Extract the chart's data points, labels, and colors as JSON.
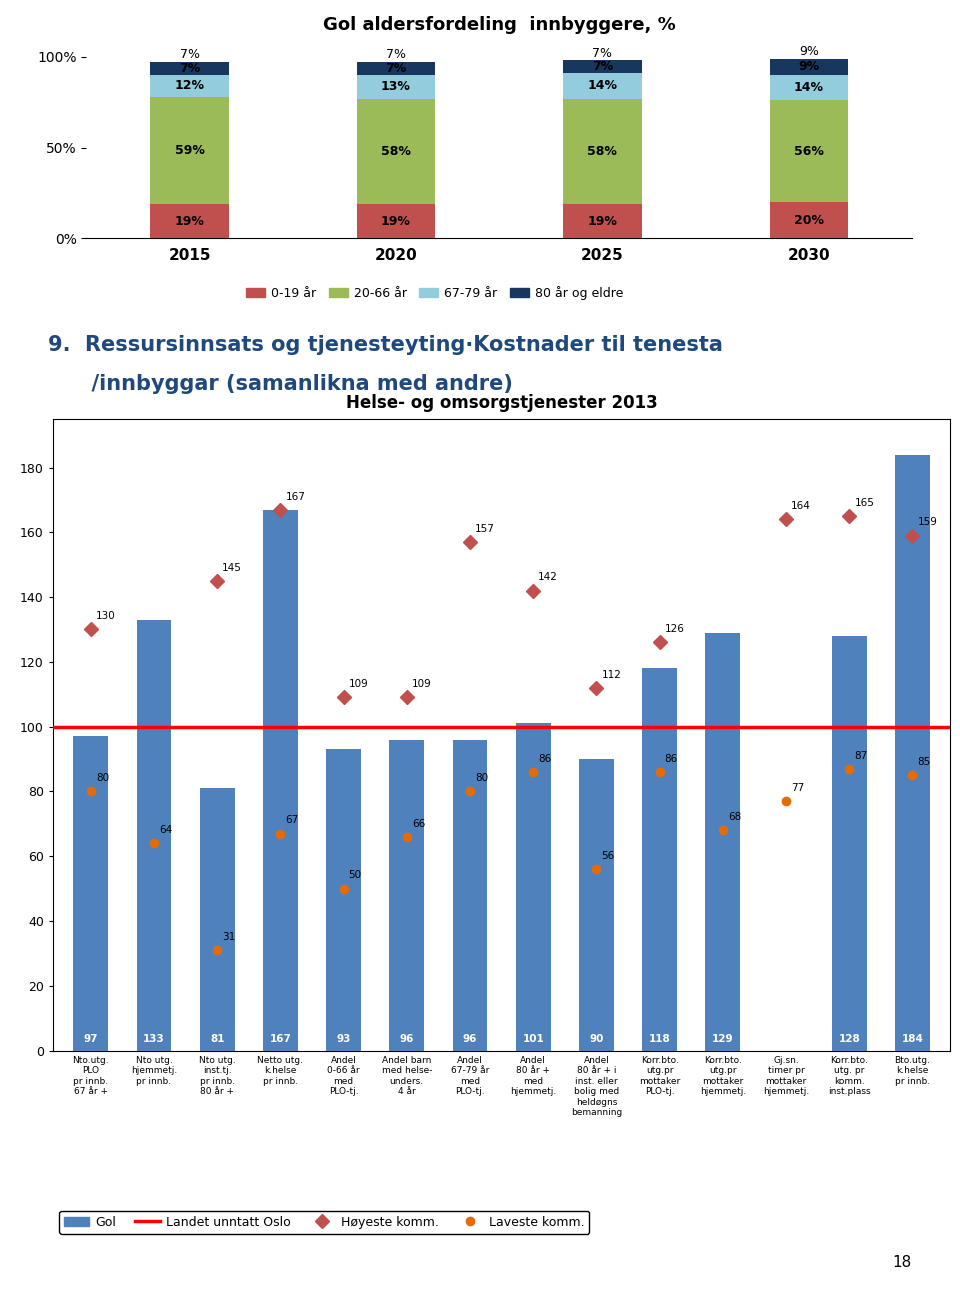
{
  "chart1": {
    "title": "Gol aldersfordeling  innbyggere, %",
    "years": [
      "2015",
      "2020",
      "2025",
      "2030"
    ],
    "segments": {
      "0-19 år": [
        19,
        19,
        19,
        20
      ],
      "20-66 år": [
        59,
        58,
        58,
        56
      ],
      "67-79 år": [
        12,
        13,
        14,
        14
      ],
      "80 år og eldre": [
        7,
        7,
        7,
        9
      ]
    },
    "colors": {
      "0-19 år": "#C0504D",
      "20-66 år": "#9BBB59",
      "67-79 år": "#93CDDD",
      "80 år og eldre": "#17375E"
    }
  },
  "section_title_line1": "9.  Ressursinnsats og tjenesteyting·Kostnader til tenesta",
  "section_title_line2": "      /innbyggar (samanlikna med andre)",
  "chart2": {
    "title": "Helse- og omsorgstjenester 2013",
    "categories": [
      "Nto.utg.\nPLO\npr innb.\n67 år +",
      "Nto utg.\nhjemmetj.\npr innb.",
      "Nto utg.\ninst.tj.\npr innb.\n80 år +",
      "Netto utg.\nk.helse\npr innb.",
      "Andel\n0-66 år\nmed\nPLO-tj.",
      "Andel barn\nmed helse-\nunders.\n4 år",
      "Andel\n67-79 år\nmed\nPLO-tj.",
      "Andel\n80 år +\nmed\nhjemmetj.",
      "Andel\n80 år + i\ninst. eller\nbolig med\nheldøgns\nbemanning",
      "Korr.bto.\nutg.pr\nmottaker\nPLO-tj.",
      "Korr.bto.\nutg.pr\nmottaker\nhjemmetj.",
      "Gj.sn.\ntimer pr\nmottaker\nhjemmetj.",
      "Korr.bto.\nutg. pr\nkomm.\ninst.plass",
      "Bto.utg.\nk.helse\npr innb."
    ],
    "bar_values": [
      97,
      133,
      81,
      167,
      93,
      96,
      96,
      101,
      90,
      118,
      129,
      null,
      128,
      184
    ],
    "bar_color": "#4F81BD",
    "reference_line": 100,
    "reference_line_color": "#FF0000",
    "høyeste": [
      130,
      null,
      145,
      167,
      109,
      109,
      157,
      142,
      112,
      126,
      null,
      164,
      165,
      159
    ],
    "laveste": [
      80,
      64,
      31,
      67,
      50,
      66,
      80,
      86,
      56,
      86,
      68,
      77,
      87,
      85
    ],
    "høyeste_color": "#C0504D",
    "laveste_color": "#E36C09",
    "yticks": [
      0,
      20,
      40,
      60,
      80,
      100,
      120,
      140,
      160,
      180
    ],
    "legend_gol": "Gol",
    "legend_landet": "Landet unntatt Oslo",
    "legend_høyeste": "Høyeste komm.",
    "legend_laveste": "Laveste komm."
  },
  "page_number": "18",
  "background_color": "#FFFFFF"
}
